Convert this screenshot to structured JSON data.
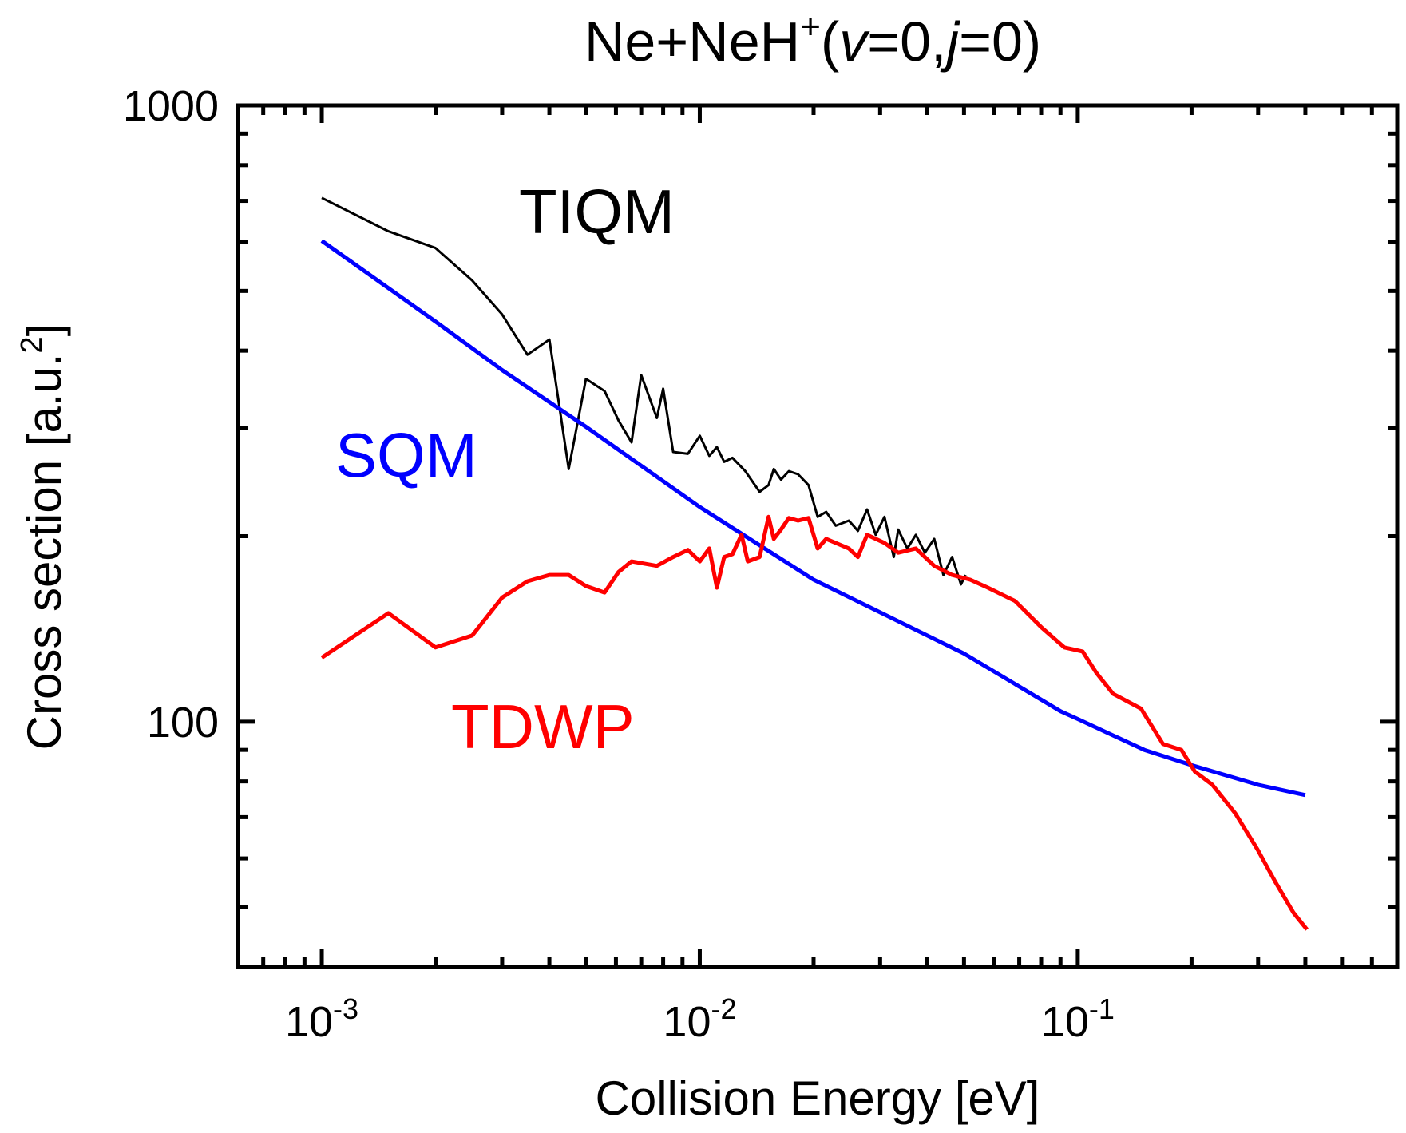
{
  "chart_data": {
    "type": "line",
    "title": {
      "main": "Ne+NeH",
      "sup": "+",
      "open": "(",
      "v": "v",
      "v_eq": "=0,",
      "j": "j",
      "j_eq": "=0)"
    },
    "xlabel": "Collision Energy [eV]",
    "ylabel": "Cross section [a.u.",
    "ylabel_sup": "2",
    "ylabel_end": "]",
    "xscale": "log",
    "yscale": "log",
    "xlim": [
      0.0006,
      0.7
    ],
    "ylim": [
      40,
      1000
    ],
    "x_ticks": [
      {
        "value": 0.001,
        "base": "10",
        "exp": "-3"
      },
      {
        "value": 0.01,
        "base": "10",
        "exp": "-2"
      },
      {
        "value": 0.1,
        "base": "10",
        "exp": "-1"
      }
    ],
    "y_ticks": [
      {
        "value": 1000,
        "label": "1000"
      },
      {
        "value": 100,
        "label": "100"
      }
    ],
    "legend": "inline labels",
    "series": [
      {
        "name": "TIQM",
        "color": "#000000",
        "x": [
          0.001,
          0.0015,
          0.002,
          0.0025,
          0.003,
          0.0035,
          0.004,
          0.0045,
          0.005,
          0.0056,
          0.0061,
          0.0066,
          0.007,
          0.0077,
          0.008,
          0.0085,
          0.0093,
          0.01,
          0.0106,
          0.0111,
          0.0116,
          0.0122,
          0.0132,
          0.0144,
          0.0152,
          0.0157,
          0.0164,
          0.0172,
          0.0182,
          0.0194,
          0.0205,
          0.0216,
          0.0229,
          0.0248,
          0.0262,
          0.0277,
          0.0292,
          0.0308,
          0.0326,
          0.0335,
          0.0354,
          0.0373,
          0.0394,
          0.0417,
          0.0441,
          0.0465,
          0.0491,
          0.0505
        ],
        "y": [
          708,
          625,
          587,
          520,
          458,
          394,
          417,
          257,
          360,
          344,
          308,
          284,
          365,
          311,
          347,
          274,
          272,
          291,
          270,
          279,
          264,
          268,
          255,
          236,
          242,
          257,
          247,
          255,
          252,
          242,
          215,
          219,
          208,
          212,
          204,
          221,
          201,
          215,
          185,
          205,
          191,
          201,
          188,
          198,
          173,
          185,
          167,
          173
        ]
      },
      {
        "name": "SQM",
        "color": "#0000ff",
        "x": [
          0.001,
          0.002,
          0.003,
          0.005,
          0.01,
          0.02,
          0.05,
          0.09,
          0.1,
          0.15,
          0.2,
          0.3,
          0.4
        ],
        "y": [
          603,
          446,
          372,
          301,
          223,
          170,
          129,
          104,
          101,
          90,
          85,
          79,
          76
        ]
      },
      {
        "name": "TDWP",
        "color": "#ff0000",
        "x": [
          0.001,
          0.0015,
          0.002,
          0.0025,
          0.003,
          0.0035,
          0.004,
          0.0045,
          0.005,
          0.0056,
          0.0061,
          0.0066,
          0.0077,
          0.0085,
          0.0093,
          0.01,
          0.0106,
          0.0111,
          0.0116,
          0.0122,
          0.0129,
          0.0134,
          0.0144,
          0.0152,
          0.0157,
          0.0164,
          0.0172,
          0.0182,
          0.0194,
          0.0205,
          0.0216,
          0.0229,
          0.0248,
          0.0262,
          0.0277,
          0.0308,
          0.0335,
          0.0373,
          0.0417,
          0.0465,
          0.0519,
          0.0578,
          0.0682,
          0.0804,
          0.0921,
          0.103,
          0.112,
          0.124,
          0.147,
          0.168,
          0.188,
          0.204,
          0.227,
          0.261,
          0.299,
          0.333,
          0.372,
          0.404
        ],
        "y": [
          127,
          150,
          132,
          138,
          159,
          169,
          173,
          173,
          166,
          162,
          175,
          182,
          179,
          185,
          190,
          182,
          191,
          165,
          185,
          187,
          201,
          182,
          185,
          215,
          198,
          205,
          214,
          212,
          214,
          191,
          198,
          195,
          191,
          185,
          201,
          195,
          188,
          191,
          179,
          173,
          170,
          165,
          157,
          142,
          132,
          130,
          120,
          111,
          105,
          92,
          90,
          83,
          79,
          71,
          62,
          55,
          49,
          46
        ]
      }
    ]
  }
}
